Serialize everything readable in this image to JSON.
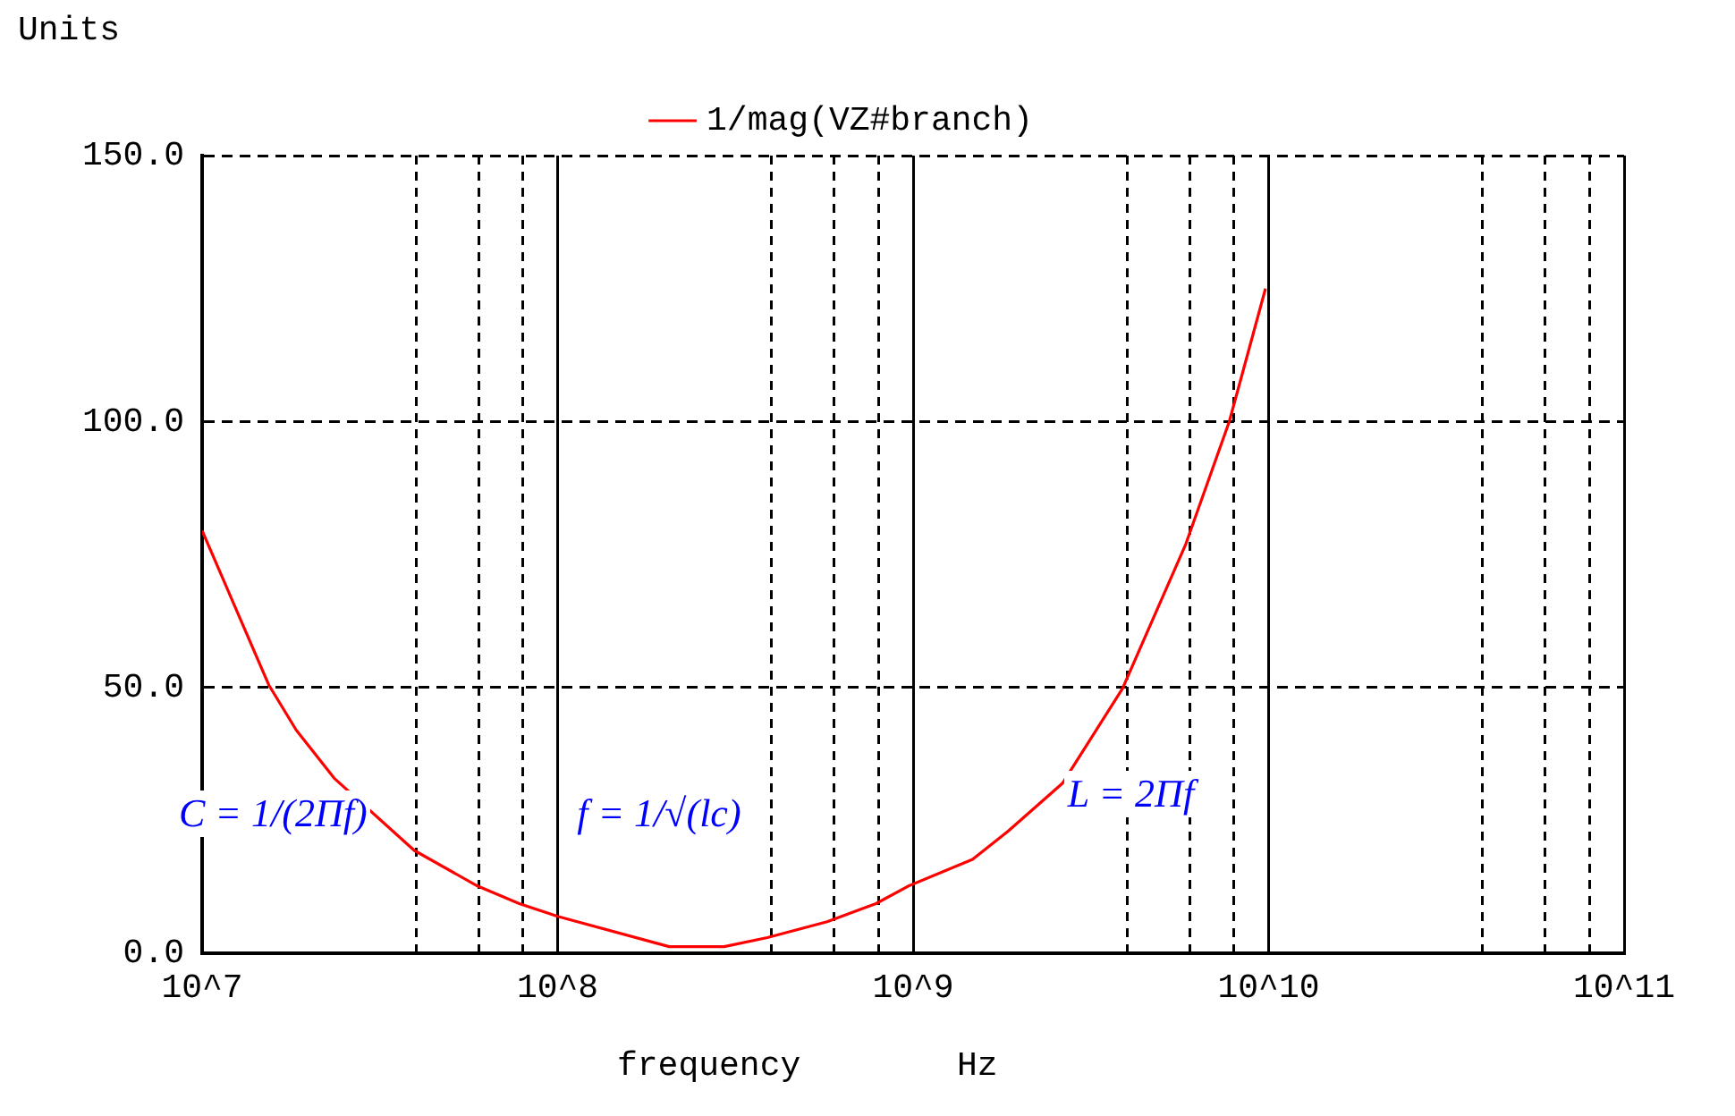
{
  "chart_data": {
    "type": "line",
    "ylabel": "Units",
    "xlabel": "frequency Hz",
    "x": [
      10000000.0,
      15400000.0,
      18400000.0,
      23500000.0,
      39500000.0,
      59500000.0,
      78000000.0,
      100000000.0,
      206000000.0,
      294000000.0,
      389000000.0,
      573000000.0,
      786000000.0,
      970000000.0,
      1470000000.0,
      1850000000.0,
      2630000000.0,
      3880000000.0,
      5850000000.0,
      7750000000.0,
      9800000000.0
    ],
    "series": [
      {
        "name": "1/mag(VZ#branch)",
        "color": "#ff0000",
        "values": [
          79.5,
          50.5,
          42,
          33,
          19.4,
          12.7,
          9.4,
          7,
          1.3,
          1.3,
          3,
          6,
          9.4,
          12.7,
          17.7,
          23,
          32,
          49.8,
          77,
          100,
          125
        ]
      }
    ],
    "log": "x",
    "xlim": [
      10000000.0,
      100000000000.0
    ],
    "xticks": [
      {
        "value": 10000000.0,
        "label": "10^7"
      },
      {
        "value": 40000000.0,
        "label": null
      },
      {
        "value": 60000000.0,
        "label": null
      },
      {
        "value": 80000000.0,
        "label": null
      },
      {
        "value": 100000000.0,
        "label": "10^8"
      },
      {
        "value": 400000000.0,
        "label": null
      },
      {
        "value": 600000000.0,
        "label": null
      },
      {
        "value": 800000000.0,
        "label": null
      },
      {
        "value": 1000000000.0,
        "label": "10^9"
      },
      {
        "value": 4000000000.0,
        "label": null
      },
      {
        "value": 6000000000.0,
        "label": null
      },
      {
        "value": 8000000000.0,
        "label": null
      },
      {
        "value": 10000000000.0,
        "label": "10^10"
      },
      {
        "value": 40000000000.0,
        "label": null
      },
      {
        "value": 60000000000.0,
        "label": null
      },
      {
        "value": 80000000000.0,
        "label": null
      },
      {
        "value": 100000000000.0,
        "label": "10^11"
      }
    ],
    "ylim": [
      0,
      150
    ],
    "yticks": [
      {
        "value": 0,
        "label": "0.0"
      },
      {
        "value": 50,
        "label": "50.0"
      },
      {
        "value": 100,
        "label": "100.0"
      },
      {
        "value": 150,
        "label": "150.0"
      }
    ],
    "grid": true,
    "legend": "top",
    "marker": "none",
    "line_style": "solid",
    "annotations": [
      "C = 1/(2Πf)",
      "f = 1/√(lc)",
      "L = 2Πf"
    ]
  }
}
